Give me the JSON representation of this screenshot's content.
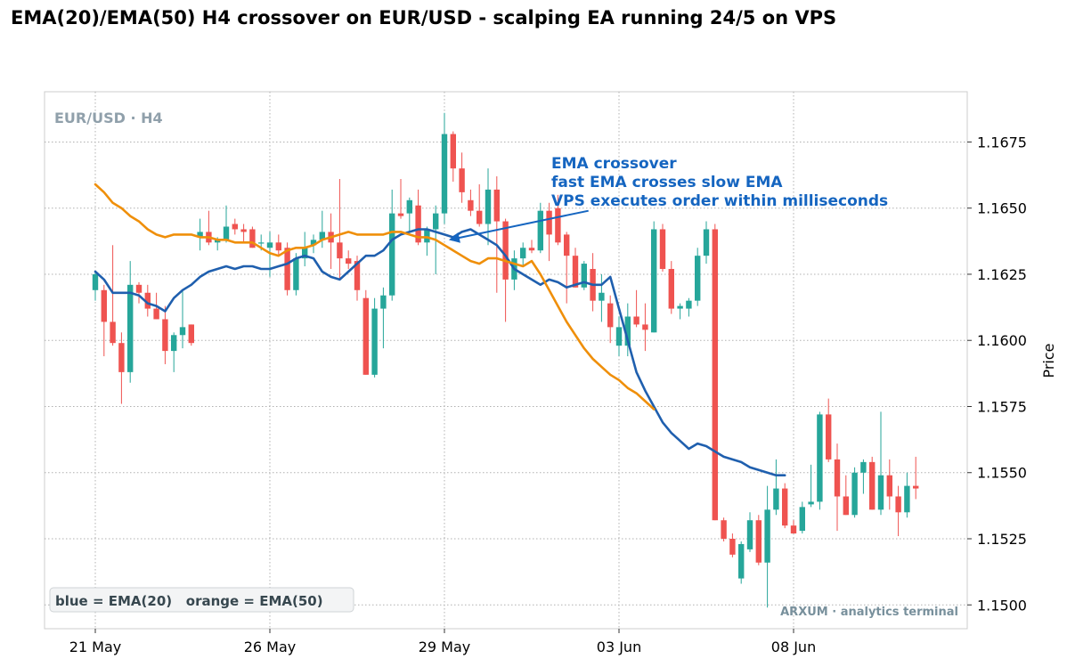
{
  "chart_data": {
    "type": "candlestick",
    "title": "EMA(20)/EMA(50) H4 crossover on EUR/USD - scalping EA running 24/5 on VPS",
    "symbol_label": "EUR/USD · H4",
    "ylabel": "Price",
    "ylim": [
      1.1491,
      1.1694
    ],
    "y_ticks": [
      1.15,
      1.1525,
      1.155,
      1.1575,
      1.16,
      1.1625,
      1.165,
      1.1675
    ],
    "y_tick_labels": [
      "1.1500",
      "1.1525",
      "1.1550",
      "1.1575",
      "1.1600",
      "1.1625",
      "1.1650",
      "1.1675"
    ],
    "x_ticks": [
      0,
      20,
      40,
      60,
      80
    ],
    "x_tick_labels": [
      "21 May",
      "26 May",
      "29 May",
      "03 Jun",
      "08 Jun"
    ],
    "grid": true,
    "candles": [
      {
        "o": 1.1619,
        "h": 1.1626,
        "l": 1.1615,
        "c": 1.1625
      },
      {
        "o": 1.1619,
        "h": 1.1621,
        "l": 1.1594,
        "c": 1.1607
      },
      {
        "o": 1.1607,
        "h": 1.1636,
        "l": 1.1598,
        "c": 1.1599
      },
      {
        "o": 1.1599,
        "h": 1.1603,
        "l": 1.1576,
        "c": 1.1588
      },
      {
        "o": 1.1588,
        "h": 1.163,
        "l": 1.1584,
        "c": 1.1621
      },
      {
        "o": 1.1621,
        "h": 1.1622,
        "l": 1.1614,
        "c": 1.1618
      },
      {
        "o": 1.1618,
        "h": 1.1621,
        "l": 1.1609,
        "c": 1.1612
      },
      {
        "o": 1.1612,
        "h": 1.1618,
        "l": 1.1608,
        "c": 1.1608
      },
      {
        "o": 1.1608,
        "h": 1.1613,
        "l": 1.1591,
        "c": 1.1596
      },
      {
        "o": 1.1596,
        "h": 1.1603,
        "l": 1.1588,
        "c": 1.1602
      },
      {
        "o": 1.1602,
        "h": 1.1619,
        "l": 1.1597,
        "c": 1.1605
      },
      {
        "o": 1.1606,
        "h": 1.1606,
        "l": 1.1598,
        "c": 1.1599
      },
      {
        "o": 1.1639,
        "h": 1.1646,
        "l": 1.1634,
        "c": 1.1641
      },
      {
        "o": 1.1641,
        "h": 1.1649,
        "l": 1.1636,
        "c": 1.1637
      },
      {
        "o": 1.1637,
        "h": 1.1639,
        "l": 1.1634,
        "c": 1.1638
      },
      {
        "o": 1.1638,
        "h": 1.1651,
        "l": 1.1637,
        "c": 1.1643
      },
      {
        "o": 1.1644,
        "h": 1.1646,
        "l": 1.164,
        "c": 1.1642
      },
      {
        "o": 1.1642,
        "h": 1.1644,
        "l": 1.1637,
        "c": 1.1641
      },
      {
        "o": 1.1642,
        "h": 1.1643,
        "l": 1.1635,
        "c": 1.1635
      },
      {
        "o": 1.1637,
        "h": 1.164,
        "l": 1.1634,
        "c": 1.1637
      },
      {
        "o": 1.1635,
        "h": 1.1641,
        "l": 1.1624,
        "c": 1.1637
      },
      {
        "o": 1.1637,
        "h": 1.164,
        "l": 1.1632,
        "c": 1.1634
      },
      {
        "o": 1.1635,
        "h": 1.1637,
        "l": 1.1617,
        "c": 1.1619
      },
      {
        "o": 1.1619,
        "h": 1.1633,
        "l": 1.1617,
        "c": 1.1631
      },
      {
        "o": 1.1631,
        "h": 1.1641,
        "l": 1.1628,
        "c": 1.1635
      },
      {
        "o": 1.1636,
        "h": 1.164,
        "l": 1.1633,
        "c": 1.1638
      },
      {
        "o": 1.1638,
        "h": 1.1649,
        "l": 1.1635,
        "c": 1.1641
      },
      {
        "o": 1.1641,
        "h": 1.1648,
        "l": 1.1627,
        "c": 1.1637
      },
      {
        "o": 1.1637,
        "h": 1.1661,
        "l": 1.1623,
        "c": 1.1631
      },
      {
        "o": 1.1631,
        "h": 1.1634,
        "l": 1.1627,
        "c": 1.1629
      },
      {
        "o": 1.163,
        "h": 1.1632,
        "l": 1.1615,
        "c": 1.1619
      },
      {
        "o": 1.1616,
        "h": 1.1619,
        "l": 1.1587,
        "c": 1.1587
      },
      {
        "o": 1.1587,
        "h": 1.1616,
        "l": 1.1586,
        "c": 1.1612
      },
      {
        "o": 1.1612,
        "h": 1.162,
        "l": 1.1597,
        "c": 1.1617
      },
      {
        "o": 1.1617,
        "h": 1.1657,
        "l": 1.1615,
        "c": 1.1648
      },
      {
        "o": 1.1648,
        "h": 1.1661,
        "l": 1.1646,
        "c": 1.1647
      },
      {
        "o": 1.1648,
        "h": 1.1654,
        "l": 1.1641,
        "c": 1.1653
      },
      {
        "o": 1.1651,
        "h": 1.1657,
        "l": 1.1636,
        "c": 1.1637
      },
      {
        "o": 1.1637,
        "h": 1.1643,
        "l": 1.1632,
        "c": 1.1642
      },
      {
        "o": 1.1642,
        "h": 1.1651,
        "l": 1.1625,
        "c": 1.1648
      },
      {
        "o": 1.1648,
        "h": 1.1686,
        "l": 1.1644,
        "c": 1.1678
      },
      {
        "o": 1.1678,
        "h": 1.1679,
        "l": 1.166,
        "c": 1.1665
      },
      {
        "o": 1.1665,
        "h": 1.1671,
        "l": 1.1652,
        "c": 1.1656
      },
      {
        "o": 1.1653,
        "h": 1.1657,
        "l": 1.1647,
        "c": 1.1649
      },
      {
        "o": 1.1649,
        "h": 1.1659,
        "l": 1.1643,
        "c": 1.1644
      },
      {
        "o": 1.1644,
        "h": 1.1665,
        "l": 1.1636,
        "c": 1.1657
      },
      {
        "o": 1.1657,
        "h": 1.1662,
        "l": 1.1618,
        "c": 1.1645
      },
      {
        "o": 1.1645,
        "h": 1.1646,
        "l": 1.1607,
        "c": 1.1623
      },
      {
        "o": 1.1623,
        "h": 1.1634,
        "l": 1.1619,
        "c": 1.1631
      },
      {
        "o": 1.1631,
        "h": 1.1637,
        "l": 1.1628,
        "c": 1.1635
      },
      {
        "o": 1.1635,
        "h": 1.1638,
        "l": 1.1633,
        "c": 1.1634
      },
      {
        "o": 1.1634,
        "h": 1.1652,
        "l": 1.1633,
        "c": 1.1649
      },
      {
        "o": 1.1649,
        "h": 1.1652,
        "l": 1.163,
        "c": 1.164
      },
      {
        "o": 1.165,
        "h": 1.1655,
        "l": 1.1636,
        "c": 1.1637
      },
      {
        "o": 1.164,
        "h": 1.1641,
        "l": 1.1614,
        "c": 1.1632
      },
      {
        "o": 1.1632,
        "h": 1.1635,
        "l": 1.162,
        "c": 1.162
      },
      {
        "o": 1.162,
        "h": 1.163,
        "l": 1.1619,
        "c": 1.1629
      },
      {
        "o": 1.1627,
        "h": 1.1633,
        "l": 1.1611,
        "c": 1.1615
      },
      {
        "o": 1.1615,
        "h": 1.1625,
        "l": 1.1607,
        "c": 1.1618
      },
      {
        "o": 1.1614,
        "h": 1.1617,
        "l": 1.1599,
        "c": 1.1605
      },
      {
        "o": 1.1598,
        "h": 1.1609,
        "l": 1.1594,
        "c": 1.1605
      },
      {
        "o": 1.1598,
        "h": 1.1614,
        "l": 1.1594,
        "c": 1.1609
      },
      {
        "o": 1.1609,
        "h": 1.1619,
        "l": 1.1605,
        "c": 1.1606
      },
      {
        "o": 1.1606,
        "h": 1.1614,
        "l": 1.1596,
        "c": 1.1604
      },
      {
        "o": 1.1603,
        "h": 1.1645,
        "l": 1.1603,
        "c": 1.1642
      },
      {
        "o": 1.1642,
        "h": 1.1644,
        "l": 1.1626,
        "c": 1.1627
      },
      {
        "o": 1.1627,
        "h": 1.163,
        "l": 1.161,
        "c": 1.1612
      },
      {
        "o": 1.1612,
        "h": 1.1614,
        "l": 1.1608,
        "c": 1.1613
      },
      {
        "o": 1.1612,
        "h": 1.1616,
        "l": 1.1609,
        "c": 1.1615
      },
      {
        "o": 1.1615,
        "h": 1.1635,
        "l": 1.1613,
        "c": 1.1632
      },
      {
        "o": 1.1632,
        "h": 1.1645,
        "l": 1.1629,
        "c": 1.1642
      },
      {
        "o": 1.1642,
        "h": 1.1644,
        "l": 1.1532,
        "c": 1.1532
      },
      {
        "o": 1.1532,
        "h": 1.1533,
        "l": 1.1524,
        "c": 1.1525
      },
      {
        "o": 1.1525,
        "h": 1.1527,
        "l": 1.1518,
        "c": 1.1519
      },
      {
        "o": 1.151,
        "h": 1.1524,
        "l": 1.1508,
        "c": 1.1523
      },
      {
        "o": 1.1521,
        "h": 1.1535,
        "l": 1.152,
        "c": 1.1532
      },
      {
        "o": 1.1532,
        "h": 1.1534,
        "l": 1.1515,
        "c": 1.1516
      },
      {
        "o": 1.1516,
        "h": 1.1545,
        "l": 1.1499,
        "c": 1.1536
      },
      {
        "o": 1.1536,
        "h": 1.1555,
        "l": 1.1534,
        "c": 1.1544
      },
      {
        "o": 1.1544,
        "h": 1.1546,
        "l": 1.1529,
        "c": 1.153
      },
      {
        "o": 1.153,
        "h": 1.1532,
        "l": 1.1527,
        "c": 1.1527
      },
      {
        "o": 1.1528,
        "h": 1.1539,
        "l": 1.1527,
        "c": 1.1537
      },
      {
        "o": 1.1538,
        "h": 1.1553,
        "l": 1.1537,
        "c": 1.1539
      },
      {
        "o": 1.1539,
        "h": 1.1573,
        "l": 1.1536,
        "c": 1.1572
      },
      {
        "o": 1.1572,
        "h": 1.1578,
        "l": 1.1554,
        "c": 1.1555
      },
      {
        "o": 1.1555,
        "h": 1.1561,
        "l": 1.1528,
        "c": 1.1541
      },
      {
        "o": 1.1541,
        "h": 1.1549,
        "l": 1.1534,
        "c": 1.1534
      },
      {
        "o": 1.1534,
        "h": 1.1552,
        "l": 1.1533,
        "c": 1.155
      },
      {
        "o": 1.155,
        "h": 1.1555,
        "l": 1.1542,
        "c": 1.1554
      },
      {
        "o": 1.1554,
        "h": 1.1556,
        "l": 1.1536,
        "c": 1.1536
      },
      {
        "o": 1.1536,
        "h": 1.1573,
        "l": 1.1534,
        "c": 1.1549
      },
      {
        "o": 1.1549,
        "h": 1.1555,
        "l": 1.1536,
        "c": 1.1541
      },
      {
        "o": 1.1541,
        "h": 1.1545,
        "l": 1.1526,
        "c": 1.1535
      },
      {
        "o": 1.1535,
        "h": 1.155,
        "l": 1.1533,
        "c": 1.1545
      },
      {
        "o": 1.1545,
        "h": 1.1556,
        "l": 1.154,
        "c": 1.1544
      }
    ],
    "series": [
      {
        "name": "EMA(20)",
        "color": "#1f5fae",
        "values": [
          1.1626,
          1.1623,
          1.1618,
          1.1618,
          1.1618,
          1.1617,
          1.1614,
          1.1613,
          1.1611,
          1.1616,
          1.1619,
          1.1621,
          1.1624,
          1.1626,
          1.1627,
          1.1628,
          1.1627,
          1.1628,
          1.1628,
          1.1627,
          1.1627,
          1.1628,
          1.1629,
          1.1631,
          1.1632,
          1.1631,
          1.1626,
          1.1624,
          1.1623,
          1.1626,
          1.1629,
          1.1632,
          1.1632,
          1.1634,
          1.1638,
          1.164,
          1.1641,
          1.1642,
          1.1642,
          1.1641,
          1.164,
          1.1639,
          1.1641,
          1.1642,
          1.164,
          1.1638,
          1.1636,
          1.1632,
          1.1627,
          1.1625,
          1.1623,
          1.1621,
          1.1623,
          1.1622,
          1.162,
          1.1621,
          1.1622,
          1.1621,
          1.1621,
          1.1624,
          1.1612,
          1.16,
          1.1588,
          1.1581,
          1.1575,
          1.1569,
          1.1565,
          1.1562,
          1.1559,
          1.1561,
          1.156,
          1.1558,
          1.1556,
          1.1555,
          1.1554,
          1.1552,
          1.1551,
          1.155,
          1.1549,
          1.1549
        ]
      },
      {
        "name": "EMA(50)",
        "color": "#ef8f0a",
        "values": [
          1.1659,
          1.1656,
          1.1652,
          1.165,
          1.1647,
          1.1645,
          1.1642,
          1.164,
          1.1639,
          1.164,
          1.164,
          1.164,
          1.1639,
          1.1639,
          1.1638,
          1.1638,
          1.1637,
          1.1637,
          1.1637,
          1.1635,
          1.1633,
          1.1632,
          1.1634,
          1.1635,
          1.1635,
          1.1636,
          1.1638,
          1.1639,
          1.164,
          1.1641,
          1.164,
          1.164,
          1.164,
          1.164,
          1.1641,
          1.1641,
          1.164,
          1.1639,
          1.1639,
          1.1638,
          1.1636,
          1.1634,
          1.1632,
          1.163,
          1.1629,
          1.1631,
          1.1631,
          1.163,
          1.1629,
          1.1628,
          1.163,
          1.1625,
          1.1619,
          1.1613,
          1.1607,
          1.1602,
          1.1597,
          1.1593,
          1.159,
          1.1587,
          1.1585,
          1.1582,
          1.158,
          1.1577,
          1.1574
        ]
      }
    ],
    "annotation": {
      "lines": [
        "EMA crossover",
        "fast EMA crosses slow EMA",
        "VPS executes order within milliseconds"
      ],
      "target_x": 40.5,
      "target_y": 1.1638,
      "tail_x": 56.5,
      "tail_y": 1.1649,
      "color": "#1565c0"
    },
    "legend_note": "blue = EMA(20)   orange = EMA(50)",
    "legend_placement": "bottom-left",
    "watermark": "ARXUM · analytics terminal",
    "colors": {
      "up": "#26a69a",
      "down": "#ef5350",
      "grid": "#b0b0b0",
      "label": "#90a0ab"
    }
  }
}
